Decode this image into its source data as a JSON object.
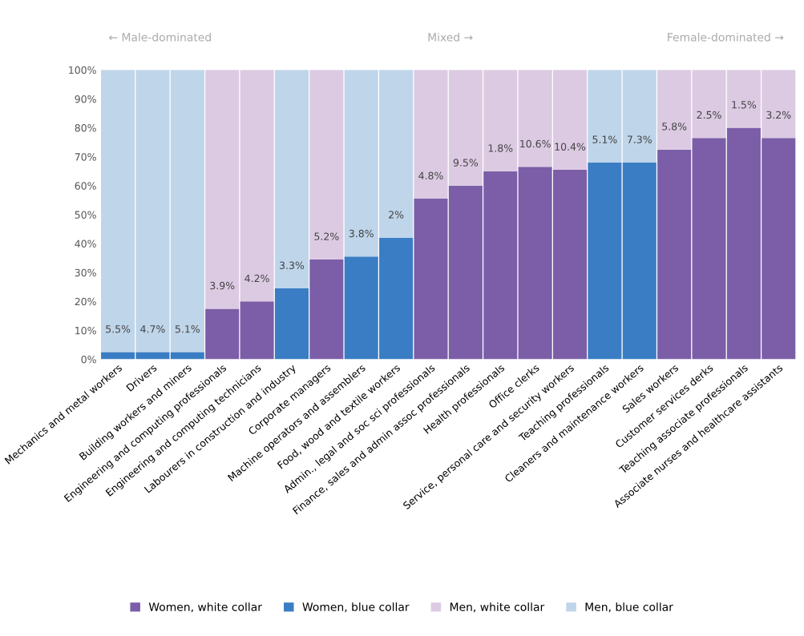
{
  "chart_data": {
    "type": "bar",
    "stacked": true,
    "categories": [
      "Mechanics and metal workers",
      "Drivers",
      "Building workers and miners",
      "Engineering and computing professionals",
      "Engineering and computing technicians",
      "Labourers in construction and industry",
      "Corporate managers",
      "Machine operators and assemblers",
      "Food, wood and textile workers",
      "Admin., legal and soc sci professionals",
      "Finance, sales and admin assoc professionals",
      "Health professionals",
      "Office clerks",
      "Service, personal care and security workers",
      "Teaching professionals",
      "Cleaners and maintenance workers",
      "Sales workers",
      "Customer services derks",
      "Teaching associate professionals",
      "Associate nurses and healthcare assistants"
    ],
    "series": [
      {
        "name": "Women, white collar",
        "color": "#7b5ea7",
        "values": [
          null,
          null,
          null,
          17.5,
          20,
          null,
          34.5,
          null,
          null,
          55.5,
          60,
          65,
          66.5,
          65.5,
          null,
          null,
          72.5,
          76.5,
          80,
          76.5
        ]
      },
      {
        "name": "Women, blue collar",
        "color": "#3a7dc4",
        "values": [
          2.5,
          2.5,
          2.5,
          null,
          null,
          24.5,
          null,
          35.5,
          42,
          null,
          null,
          null,
          null,
          null,
          68,
          68,
          null,
          null,
          null,
          null
        ]
      },
      {
        "name": "Men, white collar",
        "color": "#dccae3",
        "values": [
          null,
          null,
          null,
          82.5,
          80,
          null,
          65.5,
          null,
          null,
          44.5,
          40,
          35,
          33.5,
          34.5,
          null,
          null,
          27.5,
          23.5,
          20,
          23.5
        ]
      },
      {
        "name": "Men, blue collar",
        "color": "#bfd5ea",
        "values": [
          97.5,
          97.5,
          97.5,
          null,
          null,
          75.5,
          null,
          64.5,
          58,
          null,
          null,
          null,
          null,
          null,
          32,
          32,
          null,
          null,
          null,
          null
        ]
      }
    ],
    "ylim": [
      0,
      100
    ],
    "yticks": [
      {
        "value": 0,
        "label": "0%"
      },
      {
        "value": 10,
        "label": "10%"
      },
      {
        "value": 20,
        "label": "20%"
      },
      {
        "value": 30,
        "label": "30%"
      },
      {
        "value": 40,
        "label": "40%"
      },
      {
        "value": 50,
        "label": "50%"
      },
      {
        "value": 60,
        "label": "60%"
      },
      {
        "value": 70,
        "label": "70%"
      },
      {
        "value": 80,
        "label": "80%"
      },
      {
        "value": 90,
        "label": "90%"
      },
      {
        "value": 100,
        "label": "100%"
      }
    ],
    "grid": false,
    "legend": "bottom",
    "annotations": [
      "← Male-dominated",
      "Mixed →",
      "Female-dominated →",
      "5.5%",
      "4.7%",
      "5.1%",
      "3.9%",
      "4.2%",
      "3.3%",
      "5.2%",
      "3.8%",
      "2%",
      "4.8%",
      "9.5%",
      "1.8%",
      "10.6%",
      "10.4%",
      "5.1%",
      "7.3%",
      "5.8%",
      "2.5%",
      "1.5%",
      "3.2%"
    ]
  }
}
